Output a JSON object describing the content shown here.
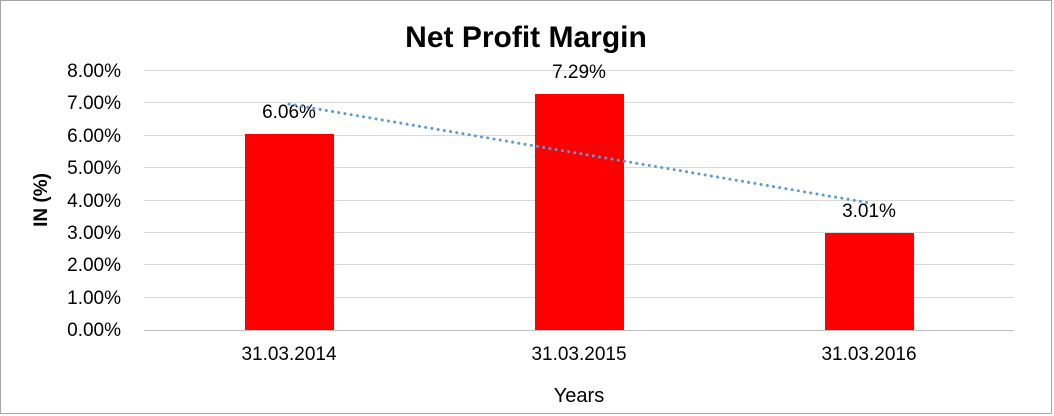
{
  "chart_data": {
    "type": "bar",
    "title": "Net Profit Margin",
    "xlabel": "Years",
    "ylabel": "IN (%)",
    "categories": [
      "31.03.2014",
      "31.03.2015",
      "31.03.2016"
    ],
    "values": [
      6.06,
      7.29,
      3.01
    ],
    "data_labels": [
      "6.06%",
      "7.29%",
      "3.01%"
    ],
    "y_ticks": [
      "0.00%",
      "1.00%",
      "2.00%",
      "3.00%",
      "4.00%",
      "5.00%",
      "6.00%",
      "7.00%",
      "8.00%"
    ],
    "ylim": [
      0,
      8
    ],
    "grid": true,
    "legend": false,
    "bar_color": "#FF0000",
    "trendline": {
      "type": "linear",
      "style": "dotted",
      "color": "#5B9BD5"
    },
    "colors": {
      "gridline": "#D9D9D9",
      "axis_line": "#BFBFBF",
      "text": "#000000",
      "background": "#FFFFFF"
    }
  }
}
